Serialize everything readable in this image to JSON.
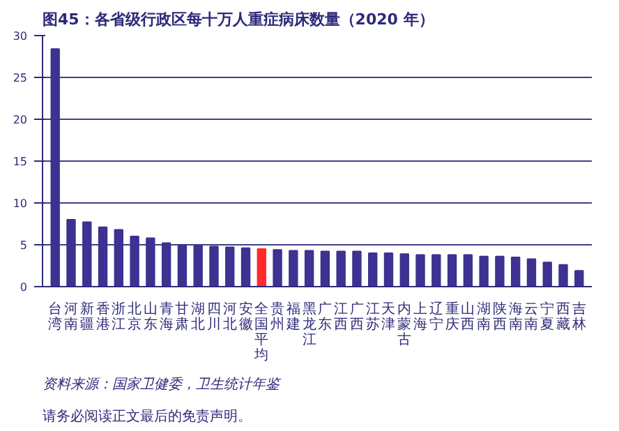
{
  "chart_data": {
    "type": "bar",
    "title": "图45：各省级行政区每十万人重症病床数量（2020 年）",
    "categories": [
      "台湾",
      "河南",
      "新疆",
      "香港",
      "浙江",
      "北京",
      "山东",
      "青海",
      "甘肃",
      "湖北",
      "四川",
      "河北",
      "安徽",
      "全国平均",
      "贵州",
      "福建",
      "黑龙江",
      "广东",
      "江西",
      "广西",
      "江苏",
      "天津",
      "内蒙古",
      "上海",
      "辽宁",
      "重庆",
      "山西",
      "湖南",
      "陕西",
      "海南",
      "云南",
      "宁夏",
      "西藏",
      "吉林"
    ],
    "values": [
      28.4,
      8.0,
      7.7,
      7.1,
      6.8,
      6.0,
      5.8,
      5.2,
      5.0,
      4.9,
      4.8,
      4.7,
      4.6,
      4.5,
      4.4,
      4.3,
      4.3,
      4.2,
      4.2,
      4.2,
      4.0,
      4.0,
      3.9,
      3.8,
      3.8,
      3.8,
      3.8,
      3.6,
      3.6,
      3.5,
      3.3,
      2.9,
      2.6,
      1.9
    ],
    "colors": [
      "#3d3192",
      "#3d3192",
      "#3d3192",
      "#3d3192",
      "#3d3192",
      "#3d3192",
      "#3d3192",
      "#3d3192",
      "#3d3192",
      "#3d3192",
      "#3d3192",
      "#3d3192",
      "#3d3192",
      "#ff2a2a",
      "#3d3192",
      "#3d3192",
      "#3d3192",
      "#3d3192",
      "#3d3192",
      "#3d3192",
      "#3d3192",
      "#3d3192",
      "#3d3192",
      "#3d3192",
      "#3d3192",
      "#3d3192",
      "#3d3192",
      "#3d3192",
      "#3d3192",
      "#3d3192",
      "#3d3192",
      "#3d3192",
      "#3d3192",
      "#3d3192"
    ],
    "ylim": [
      0,
      30
    ],
    "yticks": [
      0,
      5,
      10,
      15,
      20,
      25,
      30
    ],
    "grid": "y",
    "annotations": [
      "资料来源：国家卫健委，卫生统计年鉴",
      "请务必阅读正文最后的免责声明。"
    ]
  }
}
